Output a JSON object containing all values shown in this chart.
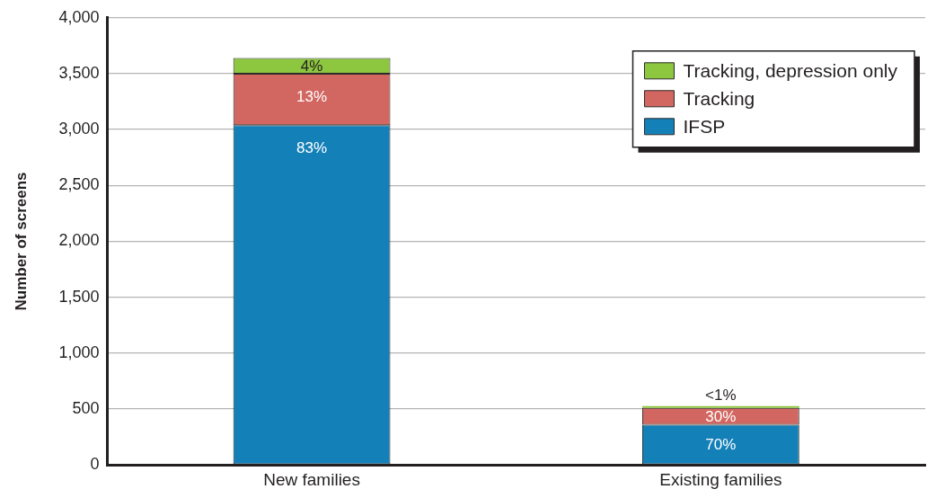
{
  "chart_data": {
    "type": "bar",
    "stacked": true,
    "categories": [
      "New families",
      "Existing families"
    ],
    "series": [
      {
        "name": "IFSP",
        "color": "#1480b8",
        "values": [
          3040,
          360
        ]
      },
      {
        "name": "Tracking",
        "color": "#d26660",
        "values": [
          460,
          150
        ]
      },
      {
        "name": "Tracking, depression only",
        "color": "#8dc63f",
        "values": [
          140,
          5
        ]
      }
    ],
    "annotations": [
      {
        "text": "83%",
        "x": "New families",
        "y": 3040
      },
      {
        "text": "13%",
        "x": "New families",
        "y": 3500
      },
      {
        "text": "4%",
        "x": "New families",
        "y": 3640
      },
      {
        "text": "70%",
        "x": "Existing families",
        "y": 360
      },
      {
        "text": "30%",
        "x": "Existing families",
        "y": 510
      },
      {
        "text": "<1%",
        "x": "Existing families",
        "y": 515
      }
    ],
    "ylabel": "Number of screens",
    "ylim": [
      0,
      4000
    ],
    "yticks": [
      0,
      500,
      {
        "value": 1000,
        "label": "1,000"
      },
      {
        "value": 1500,
        "label": "1,500"
      },
      {
        "value": 2000,
        "label": "2,000"
      },
      {
        "value": 2500,
        "label": "2,500"
      },
      {
        "value": 3000,
        "label": "3,000"
      },
      {
        "value": 3500,
        "label": "3,500"
      },
      {
        "value": 4000,
        "label": "4,000"
      }
    ],
    "grid": "y",
    "legend": "top right"
  }
}
